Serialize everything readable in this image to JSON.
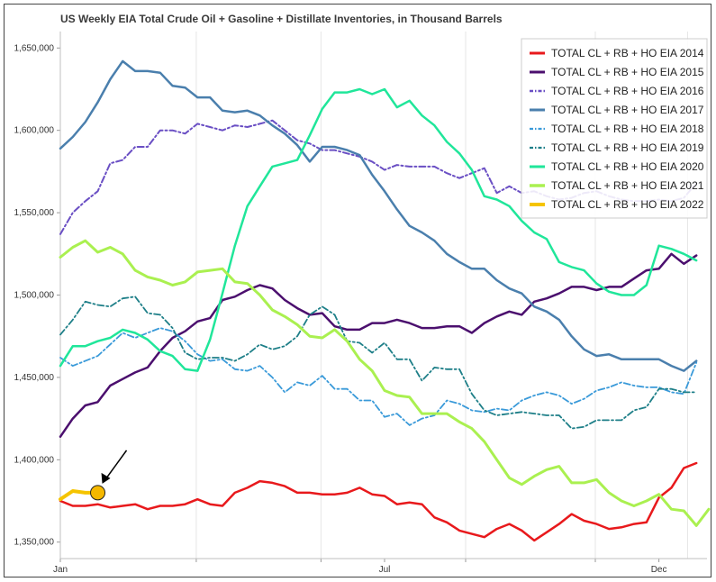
{
  "chart_data": {
    "type": "line",
    "title": "US Weekly EIA Total Crude Oil + Gasoline + Distillate Inventories, in Thousand Barrels",
    "xlabel": "",
    "ylabel": "",
    "x_ticks": [
      "Jan",
      "Jul",
      "Dec"
    ],
    "x_range": [
      1,
      53
    ],
    "y_ticks": [
      "1,350,000",
      "1,400,000",
      "1,450,000",
      "1,500,000",
      "1,550,000",
      "1,600,000",
      "1,650,000"
    ],
    "y_tick_values": [
      1350000,
      1400000,
      1450000,
      1500000,
      1550000,
      1600000,
      1650000
    ],
    "ylim": [
      1340000,
      1660000
    ],
    "grid": "vertical",
    "legend_position": "top-right",
    "series": [
      {
        "name": "TOTAL CL + RB + HO EIA 2014",
        "color": "#e8191c",
        "dash": "solid",
        "width": 2.5,
        "values": [
          1375000,
          1372000,
          1372000,
          1373000,
          1371000,
          1372000,
          1373000,
          1370000,
          1372000,
          1372000,
          1373000,
          1376000,
          1373000,
          1372000,
          1380000,
          1383000,
          1387000,
          1386000,
          1384000,
          1380000,
          1380000,
          1379000,
          1379000,
          1380000,
          1383000,
          1379000,
          1378000,
          1373000,
          1374000,
          1373000,
          1365000,
          1362000,
          1357000,
          1355000,
          1353000,
          1358000,
          1361000,
          1357000,
          1351000,
          1356000,
          1361000,
          1367000,
          1363000,
          1361000,
          1358000,
          1359000,
          1361000,
          1362000,
          1377000,
          1383000,
          1395000,
          1398000
        ]
      },
      {
        "name": "TOTAL CL + RB + HO EIA 2015",
        "color": "#4b0f6e",
        "dash": "solid",
        "width": 2.5,
        "values": [
          1414000,
          1425000,
          1433000,
          1435000,
          1445000,
          1449000,
          1453000,
          1456000,
          1466000,
          1474000,
          1478000,
          1484000,
          1486000,
          1497000,
          1499000,
          1503000,
          1506000,
          1504000,
          1497000,
          1492000,
          1488000,
          1489000,
          1481000,
          1479000,
          1479000,
          1483000,
          1483000,
          1485000,
          1483000,
          1480000,
          1480000,
          1481000,
          1481000,
          1477000,
          1483000,
          1487000,
          1490000,
          1488000,
          1496000,
          1498000,
          1501000,
          1505000,
          1505000,
          1503000,
          1505000,
          1505000,
          1510000,
          1515000,
          1516000,
          1525000,
          1519000,
          1524000
        ]
      },
      {
        "name": "TOTAL CL + RB + HO EIA 2016",
        "color": "#6a4fc4",
        "dash": "dashdot",
        "width": 2,
        "values": [
          1537000,
          1550000,
          1557000,
          1563000,
          1580000,
          1582000,
          1590000,
          1590000,
          1600000,
          1600000,
          1598000,
          1604000,
          1602000,
          1600000,
          1603000,
          1602000,
          1604000,
          1606000,
          1600000,
          1594000,
          1592000,
          1588000,
          1588000,
          1586000,
          1584000,
          1581000,
          1576000,
          1579000,
          1578000,
          1578000,
          1578000,
          1574000,
          1571000,
          1574000,
          1577000,
          1562000,
          1566000,
          1562000,
          1563000,
          1560000,
          1558000,
          1559000,
          1562000,
          1563000,
          1560000,
          1558000,
          1557000,
          1557000,
          1558000,
          1557000,
          1559000,
          1568000
        ]
      },
      {
        "name": "TOTAL CL + RB + HO EIA 2017",
        "color": "#4a7fad",
        "dash": "solid",
        "width": 2.5,
        "values": [
          1589000,
          1596000,
          1605000,
          1617000,
          1631000,
          1642000,
          1636000,
          1636000,
          1635000,
          1627000,
          1626000,
          1620000,
          1620000,
          1612000,
          1611000,
          1612000,
          1609000,
          1603000,
          1598000,
          1591000,
          1581000,
          1590000,
          1590000,
          1588000,
          1585000,
          1573000,
          1563000,
          1552000,
          1542000,
          1538000,
          1533000,
          1525000,
          1520000,
          1516000,
          1516000,
          1509000,
          1504000,
          1501000,
          1493000,
          1490000,
          1485000,
          1475000,
          1467000,
          1463000,
          1464000,
          1461000,
          1461000,
          1461000,
          1461000,
          1457000,
          1454000,
          1460000
        ]
      },
      {
        "name": "TOTAL CL + RB + HO EIA 2018",
        "color": "#3a9ad9",
        "dash": "dashdot",
        "width": 1.8,
        "values": [
          1462000,
          1457000,
          1460000,
          1463000,
          1470000,
          1477000,
          1474000,
          1477000,
          1480000,
          1478000,
          1472000,
          1464000,
          1460000,
          1461000,
          1455000,
          1454000,
          1457000,
          1450000,
          1441000,
          1447000,
          1445000,
          1451000,
          1443000,
          1443000,
          1436000,
          1436000,
          1426000,
          1428000,
          1421000,
          1425000,
          1427000,
          1436000,
          1434000,
          1430000,
          1429000,
          1431000,
          1430000,
          1436000,
          1439000,
          1441000,
          1439000,
          1434000,
          1437000,
          1442000,
          1444000,
          1447000,
          1445000,
          1444000,
          1444000,
          1441000,
          1440000,
          1459000
        ]
      },
      {
        "name": "TOTAL CL + RB + HO EIA 2019",
        "color": "#1e7f88",
        "dash": "dashdot",
        "width": 1.8,
        "values": [
          1476000,
          1485000,
          1496000,
          1494000,
          1493000,
          1498000,
          1499000,
          1489000,
          1488000,
          1480000,
          1465000,
          1461000,
          1462000,
          1462000,
          1460000,
          1464000,
          1470000,
          1467000,
          1469000,
          1475000,
          1488000,
          1493000,
          1488000,
          1472000,
          1471000,
          1465000,
          1471000,
          1461000,
          1461000,
          1448000,
          1456000,
          1455000,
          1455000,
          1440000,
          1430000,
          1427000,
          1428000,
          1429000,
          1428000,
          1427000,
          1427000,
          1419000,
          1420000,
          1424000,
          1424000,
          1424000,
          1430000,
          1432000,
          1443000,
          1443000,
          1441000,
          1441000
        ]
      },
      {
        "name": "TOTAL CL + RB + HO EIA 2020",
        "color": "#20e69a",
        "dash": "solid",
        "width": 2.5,
        "values": [
          1457000,
          1469000,
          1469000,
          1472000,
          1474000,
          1479000,
          1477000,
          1473000,
          1466000,
          1463000,
          1455000,
          1454000,
          1473000,
          1501000,
          1530000,
          1554000,
          1566000,
          1578000,
          1580000,
          1582000,
          1597000,
          1613000,
          1623000,
          1623000,
          1625000,
          1622000,
          1625000,
          1614000,
          1618000,
          1609000,
          1603000,
          1593000,
          1586000,
          1576000,
          1560000,
          1558000,
          1554000,
          1545000,
          1538000,
          1534000,
          1520000,
          1517000,
          1515000,
          1507000,
          1502000,
          1500000,
          1500000,
          1506000,
          1530000,
          1528000,
          1525000,
          1521000
        ]
      },
      {
        "name": "TOTAL CL + RB + HO EIA 2021",
        "color": "#aaf050",
        "dash": "solid",
        "width": 3,
        "values": [
          1523000,
          1529000,
          1533000,
          1526000,
          1529000,
          1525000,
          1515000,
          1511000,
          1509000,
          1506000,
          1508000,
          1514000,
          1515000,
          1516000,
          1508000,
          1507000,
          1500000,
          1491000,
          1487000,
          1482000,
          1475000,
          1474000,
          1479000,
          1472000,
          1461000,
          1454000,
          1442000,
          1439000,
          1438000,
          1428000,
          1428000,
          1428000,
          1423000,
          1419000,
          1411000,
          1400000,
          1389000,
          1385000,
          1390000,
          1394000,
          1396000,
          1386000,
          1386000,
          1388000,
          1380000,
          1375000,
          1372000,
          1375000,
          1379000,
          1370000,
          1369000,
          1360000,
          1370000
        ]
      },
      {
        "name": "TOTAL CL + RB + HO EIA 2022",
        "color": "#f5c400",
        "dash": "solid",
        "width": 4,
        "values": [
          1376000,
          1381000,
          1380000,
          1380000
        ]
      }
    ]
  }
}
